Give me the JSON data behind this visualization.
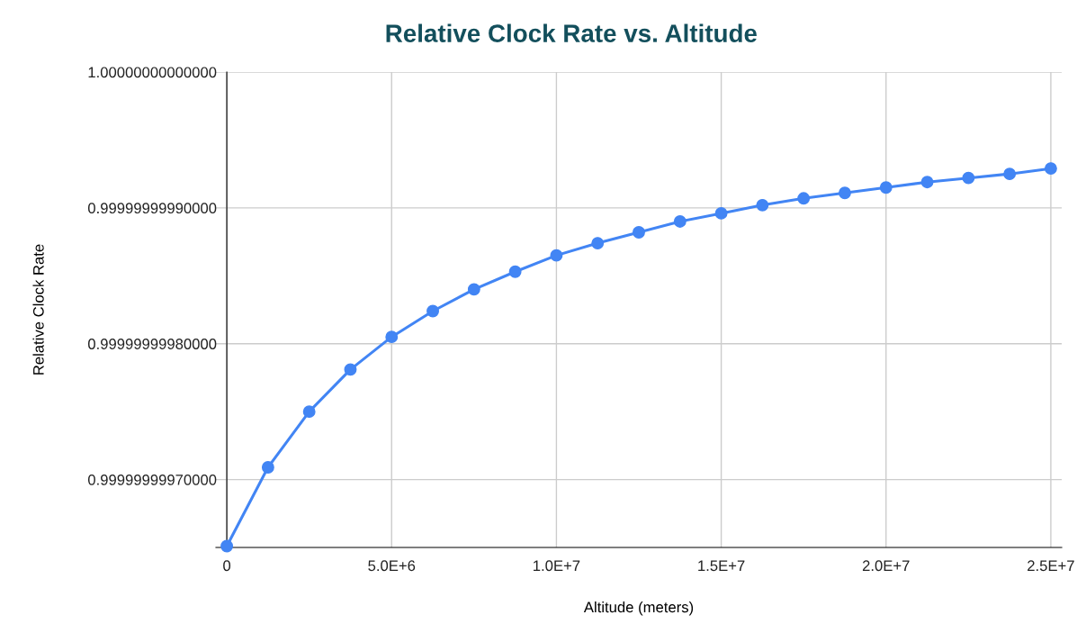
{
  "chart_data": {
    "type": "line",
    "title": "Relative Clock Rate vs. Altitude",
    "xlabel": "Altitude (meters)",
    "ylabel": "Relative Clock Rate",
    "x": [
      0,
      1250000,
      2500000,
      3750000,
      5000000,
      6250000,
      7500000,
      8750000,
      10000000,
      11250000,
      12500000,
      13750000,
      15000000,
      16250000,
      17500000,
      18750000,
      20000000,
      21250000,
      22500000,
      23750000,
      25000000
    ],
    "series": [
      {
        "color": "#4285f4",
        "values": [
          0.999999999651,
          0.999999999709,
          0.99999999975,
          0.999999999781,
          0.999999999805,
          0.999999999824,
          0.99999999984,
          0.999999999853,
          0.999999999865,
          0.999999999874,
          0.999999999882,
          0.99999999989,
          0.999999999896,
          0.999999999902,
          0.999999999907,
          0.999999999911,
          0.999999999915,
          0.999999999919,
          0.999999999922,
          0.999999999925,
          0.999999999929
        ]
      }
    ],
    "xlim": [
      -330000,
      25330000
    ],
    "xticks": [
      0,
      {
        "value": 5000000,
        "label": "5.0E+6"
      },
      {
        "value": 10000000,
        "label": "1.0E+7"
      },
      {
        "value": 15000000,
        "label": "1.5E+7"
      },
      {
        "value": 20000000,
        "label": "2.0E+7"
      },
      {
        "value": 25000000,
        "label": "2.5E+7"
      }
    ],
    "ylim": [
      0.99999999965,
      1.0
    ],
    "yticks": [
      {
        "value": 0.9999999997,
        "label": "0.99999999970000"
      },
      {
        "value": 0.9999999998,
        "label": "0.99999999980000"
      },
      {
        "value": 0.9999999999,
        "label": "0.99999999990000"
      },
      {
        "value": 1.0,
        "label": "1.00000000000000"
      }
    ],
    "grid": true,
    "marker": "circle",
    "line_style": "solid",
    "legend": false
  }
}
